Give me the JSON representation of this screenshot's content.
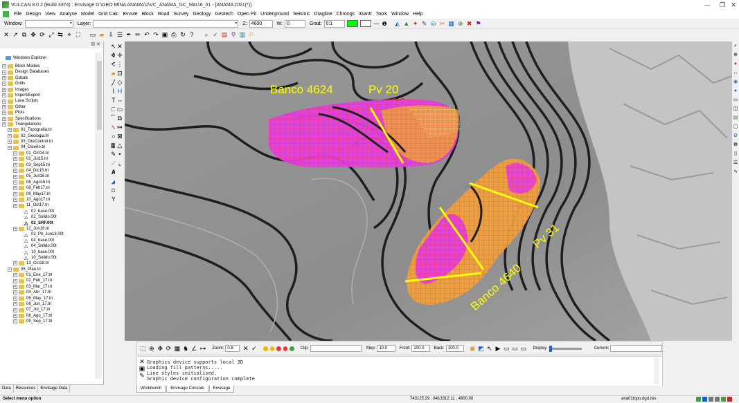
{
  "window": {
    "title": "VULCAN 8.0.2 (Build 3374) : Envisage  D:\\GEO MINA ANAMA\\2\\VC_ANAMA_GC_Mar16_01 - [ANAMA.DG1(*)]",
    "minimize": "—",
    "restore": "❐",
    "close": "✕"
  },
  "menu": [
    {
      "label": "File"
    },
    {
      "label": "Design"
    },
    {
      "label": "View"
    },
    {
      "label": "Analyse"
    },
    {
      "label": "Model"
    },
    {
      "label": "Grid Calc"
    },
    {
      "label": "Bvvute"
    },
    {
      "label": "Block"
    },
    {
      "label": "Road"
    },
    {
      "label": "Survey"
    },
    {
      "label": "Geology"
    },
    {
      "label": "Geotech"
    },
    {
      "label": "Open Pit"
    },
    {
      "label": "Underground"
    },
    {
      "label": "Seismic"
    },
    {
      "label": "Dragline"
    },
    {
      "label": "Chrongs"
    },
    {
      "label": "iGantt"
    },
    {
      "label": "Tools"
    },
    {
      "label": "Window"
    },
    {
      "label": "Help"
    }
  ],
  "toolbar": {
    "window_label": "Window:",
    "window_value": "",
    "layer_label": "Layer:",
    "layer_value": "",
    "z_label": "Z:",
    "z_value": "4600",
    "w_label": "W:",
    "w_value": "0",
    "grad_label": "Grad:",
    "grad_value": "0:1",
    "color_a": "#00ff00",
    "color_b": "#ffffff"
  },
  "explorer": {
    "title": "Windows Explorer",
    "items": [
      {
        "label": "Block Models",
        "type": "folder",
        "indent": 0
      },
      {
        "label": "Design Databases",
        "type": "folder",
        "indent": 0
      },
      {
        "label": "Gdcalc",
        "type": "folder",
        "indent": 0
      },
      {
        "label": "Grids",
        "type": "folder",
        "indent": 0
      },
      {
        "label": "Images",
        "type": "folder",
        "indent": 0
      },
      {
        "label": "Import/Export",
        "type": "folder",
        "indent": 0
      },
      {
        "label": "Lava Scripts",
        "type": "folder",
        "indent": 0
      },
      {
        "label": "Other",
        "type": "folder",
        "indent": 0
      },
      {
        "label": "Plots",
        "type": "folder",
        "indent": 0
      },
      {
        "label": "Specifications",
        "type": "folder",
        "indent": 0
      },
      {
        "label": "Triangulations",
        "type": "folder",
        "indent": 0
      },
      {
        "label": "01_Topografia.tri",
        "type": "folder",
        "indent": 1
      },
      {
        "label": "02_Geologia.tri",
        "type": "folder",
        "indent": 1
      },
      {
        "label": "03_OreControl.tri",
        "type": "folder",
        "indent": 1
      },
      {
        "label": "04_Diseño.tri",
        "type": "folder",
        "indent": 1
      },
      {
        "label": "01_Oct14.tri",
        "type": "folder",
        "indent": 2
      },
      {
        "label": "02_Jul15.tri",
        "type": "folder",
        "indent": 2
      },
      {
        "label": "03_Sep15.tri",
        "type": "folder",
        "indent": 2
      },
      {
        "label": "04_Dic15.tri",
        "type": "folder",
        "indent": 2
      },
      {
        "label": "05_Jun16.tri",
        "type": "folder",
        "indent": 2
      },
      {
        "label": "06_Ago16.tri",
        "type": "folder",
        "indent": 2
      },
      {
        "label": "08_Feb17.tri",
        "type": "folder",
        "indent": 2
      },
      {
        "label": "09_May17.tri",
        "type": "folder",
        "indent": 2
      },
      {
        "label": "10_Ago17.tri",
        "type": "folder",
        "indent": 2
      },
      {
        "label": "11_Oct17.tri",
        "type": "folder",
        "indent": 2
      },
      {
        "label": "02_base.00t",
        "type": "tri",
        "indent": 3
      },
      {
        "label": "02_Solido.00t",
        "type": "tri",
        "indent": 3
      },
      {
        "label": "02_SRF.00t",
        "type": "tri",
        "indent": 3,
        "bold": true
      },
      {
        "label": "12_Jun18.tri",
        "type": "folder",
        "indent": 2
      },
      {
        "label": "02_Pit_Jun18.00t",
        "type": "tri",
        "indent": 3
      },
      {
        "label": "04_base.00t",
        "type": "tri",
        "indent": 3
      },
      {
        "label": "04_Solido.00t",
        "type": "tri",
        "indent": 3
      },
      {
        "label": "10_base.00t",
        "type": "tri",
        "indent": 3
      },
      {
        "label": "10_Solido.00t",
        "type": "tri",
        "indent": 3
      },
      {
        "label": "13_Oct18.tri",
        "type": "folder",
        "indent": 2
      },
      {
        "label": "05_Plan.tri",
        "type": "folder",
        "indent": 1
      },
      {
        "label": "01_Ene_17.tri",
        "type": "folder",
        "indent": 2
      },
      {
        "label": "02_Feb_17.tri",
        "type": "folder",
        "indent": 2
      },
      {
        "label": "03_Mar_17.tri",
        "type": "folder",
        "indent": 2
      },
      {
        "label": "04_Abr_17.tri",
        "type": "folder",
        "indent": 2
      },
      {
        "label": "05_May_17.tri",
        "type": "folder",
        "indent": 2
      },
      {
        "label": "06_Jun_17.tri",
        "type": "folder",
        "indent": 2
      },
      {
        "label": "07_Jul_17.tri",
        "type": "folder",
        "indent": 2
      },
      {
        "label": "08_Ago_17.tri",
        "type": "folder",
        "indent": 2
      },
      {
        "label": "09_Sep_17.tri",
        "type": "folder",
        "indent": 2
      }
    ],
    "tabs": [
      {
        "label": "Data"
      },
      {
        "label": "Resources"
      },
      {
        "label": "Envisage Data"
      }
    ]
  },
  "viewport": {
    "label_a": "Banco 4624",
    "label_b": "Pv 20",
    "label_c": "Banco 4640",
    "label_d": "Pv 31",
    "label_color": "#ffff00"
  },
  "bottom_toolbar": {
    "zoom_label": "Zoom:",
    "zoom_value": "0.8",
    "clip_label": "Clip:",
    "step_label": "Step:",
    "step_value": "10.0",
    "front_label": "Front:",
    "front_value": "100.0",
    "back_label": "Back:",
    "back_value": "100.0",
    "display_label": "Display",
    "current_label": "Current:"
  },
  "console": {
    "lines": [
      "Graphics device supports local 3D",
      "Loading fill patterns.....",
      "Line styles initialised.",
      "Graphic device configuration complete"
    ],
    "tabs": [
      {
        "label": "Workbench"
      },
      {
        "label": "Envisage Console"
      },
      {
        "label": "Envisage"
      }
    ]
  },
  "status": {
    "left": "Select menu option",
    "coords": "743125.29 , 8413312.11 , 4600.00",
    "file": "ana01topo.dgd.isis"
  }
}
